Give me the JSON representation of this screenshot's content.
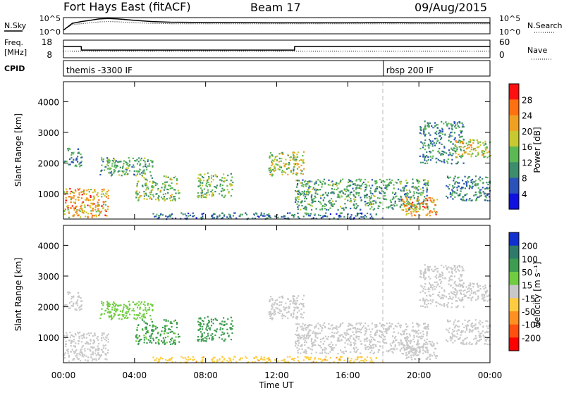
{
  "header": {
    "station": "Fort Hays East (fitACF)",
    "beam": "Beam 17",
    "date": "09/Aug/2015"
  },
  "sky_panel": {
    "left_label": "N.Sky",
    "left_ticks": [
      "10^5",
      "10^0"
    ],
    "right_ticks": [
      "10^5",
      "10^0"
    ],
    "right_label": "N.Search"
  },
  "freq_panel": {
    "left_label_top": "Freq.",
    "left_label_bottom": "[MHz]",
    "left_ticks": [
      "18",
      "8"
    ],
    "right_ticks": [
      "60",
      "0"
    ],
    "right_label": "Nave"
  },
  "cpid": {
    "label": "CPID",
    "segments": [
      {
        "text": "themis -3300 IF",
        "start_hour": 0
      },
      {
        "text": "rbsp 200 IF",
        "start_hour": 18
      }
    ]
  },
  "x_axis": {
    "label": "Time UT",
    "ticks": [
      "00:00",
      "04:00",
      "08:00",
      "12:00",
      "16:00",
      "20:00",
      "00:00"
    ]
  },
  "chart_data": [
    {
      "type": "line",
      "title": "N.Sky / N.Search",
      "x": [
        0,
        0.5,
        1,
        1.5,
        2,
        2.5,
        3,
        3.5,
        4,
        5,
        6,
        8,
        10,
        12,
        14,
        16,
        18,
        20,
        22,
        24
      ],
      "series": [
        {
          "name": "N.Sky",
          "values": [
            10,
            2000,
            8000,
            20000,
            60000,
            90000,
            70000,
            40000,
            20000,
            8000,
            5000,
            4000,
            3500,
            3000,
            3000,
            3000,
            3500,
            3000,
            3000,
            3000
          ]
        },
        {
          "name": "N.Search",
          "values": [
            10,
            800,
            1500,
            3000,
            6000,
            8000,
            7000,
            5000,
            3000,
            2000,
            1500,
            1500,
            1500,
            1500,
            1500,
            1500,
            1500,
            1500,
            1500,
            1500
          ]
        }
      ],
      "ylim": [
        1,
        100000
      ],
      "log_y": true
    },
    {
      "type": "line",
      "title": "Freq. / Nave",
      "x": [
        0,
        1,
        1.01,
        13,
        13.01,
        24
      ],
      "series": [
        {
          "name": "Freq.",
          "values": [
            14.5,
            14.5,
            12.3,
            12.3,
            14.5,
            14.5
          ]
        },
        {
          "name": "Nave",
          "values": [
            22,
            22,
            22,
            22,
            22,
            22
          ]
        }
      ],
      "left_ylim": [
        8,
        18
      ],
      "right_ylim": [
        0,
        60
      ]
    },
    {
      "type": "heatmap",
      "title": "Power",
      "ylabel": "Slant Range [km]",
      "xlabel": "Time UT",
      "ylim": [
        180,
        4650
      ],
      "y_ticks": [
        1000,
        2000,
        3000,
        4000
      ],
      "xlim": [
        0,
        24
      ],
      "colorbar": {
        "label": "Power [dB]",
        "ticks": [
          4,
          8,
          12,
          16,
          20,
          24,
          28
        ],
        "colors": [
          "#1010e0",
          "#2a52b8",
          "#3d8c6c",
          "#5cb855",
          "#c8c830",
          "#f0a020",
          "#ff7010",
          "#ff1010"
        ]
      },
      "regions": [
        {
          "t0": 0.0,
          "t1": 2.5,
          "r0": 250,
          "r1": 1200,
          "level": 22
        },
        {
          "t0": 0.0,
          "t1": 1.0,
          "r0": 1900,
          "r1": 2500,
          "level": 10
        },
        {
          "t0": 2.0,
          "t1": 5.0,
          "r0": 1600,
          "r1": 2200,
          "level": 12
        },
        {
          "t0": 4.0,
          "t1": 6.5,
          "r0": 800,
          "r1": 1600,
          "level": 15
        },
        {
          "t0": 7.5,
          "t1": 9.5,
          "r0": 900,
          "r1": 1700,
          "level": 14
        },
        {
          "t0": 11.5,
          "t1": 13.5,
          "r0": 1600,
          "r1": 2400,
          "level": 17
        },
        {
          "t0": 13.0,
          "t1": 20.5,
          "r0": 500,
          "r1": 1500,
          "level": 12
        },
        {
          "t0": 19.0,
          "t1": 21.0,
          "r0": 300,
          "r1": 900,
          "level": 22
        },
        {
          "t0": 20.0,
          "t1": 22.5,
          "r0": 2000,
          "r1": 3400,
          "level": 10
        },
        {
          "t0": 22.0,
          "t1": 24.0,
          "r0": 2200,
          "r1": 2800,
          "level": 18
        },
        {
          "t0": 21.5,
          "t1": 24.0,
          "r0": 800,
          "r1": 1600,
          "level": 9
        },
        {
          "t0": 5.0,
          "t1": 18.0,
          "r0": 200,
          "r1": 400,
          "level": 8
        }
      ]
    },
    {
      "type": "heatmap",
      "title": "Velocity",
      "ylabel": "Slant Range [km]",
      "xlabel": "Time UT",
      "ylim": [
        180,
        4650
      ],
      "y_ticks": [
        1000,
        2000,
        3000,
        4000
      ],
      "xlim": [
        0,
        24
      ],
      "colorbar": {
        "label": "Velocity [m s^-1]",
        "ticks": [
          200,
          100,
          50,
          15,
          -15,
          -50,
          -100,
          -200
        ],
        "colors": [
          "#1030d0",
          "#2f7a6a",
          "#3d9c50",
          "#70cc40",
          "#c8c8c8",
          "#ffcc40",
          "#ff9020",
          "#ff5010",
          "#ff0000"
        ]
      },
      "regions": [
        {
          "t0": 0.0,
          "t1": 2.5,
          "r0": 250,
          "r1": 1200,
          "level": 0
        },
        {
          "t0": 0.0,
          "t1": 1.0,
          "r0": 1900,
          "r1": 2500,
          "level": 0
        },
        {
          "t0": 2.0,
          "t1": 5.0,
          "r0": 1600,
          "r1": 2200,
          "level": 30
        },
        {
          "t0": 4.0,
          "t1": 6.5,
          "r0": 800,
          "r1": 1600,
          "level": 60
        },
        {
          "t0": 7.5,
          "t1": 9.5,
          "r0": 900,
          "r1": 1700,
          "level": 80
        },
        {
          "t0": 11.5,
          "t1": 13.5,
          "r0": 1600,
          "r1": 2400,
          "level": 0
        },
        {
          "t0": 13.0,
          "t1": 20.5,
          "r0": 500,
          "r1": 1500,
          "level": 0
        },
        {
          "t0": 19.0,
          "t1": 21.0,
          "r0": 300,
          "r1": 900,
          "level": -5
        },
        {
          "t0": 20.0,
          "t1": 22.5,
          "r0": 2000,
          "r1": 3400,
          "level": 0
        },
        {
          "t0": 22.0,
          "t1": 24.0,
          "r0": 2200,
          "r1": 2800,
          "level": 0
        },
        {
          "t0": 21.5,
          "t1": 24.0,
          "r0": 800,
          "r1": 1600,
          "level": 0
        },
        {
          "t0": 5.0,
          "t1": 18.0,
          "r0": 200,
          "r1": 400,
          "level": -40
        }
      ]
    }
  ],
  "colors": {
    "axis": "#000000",
    "grid_dash": "#bbbbbb"
  }
}
